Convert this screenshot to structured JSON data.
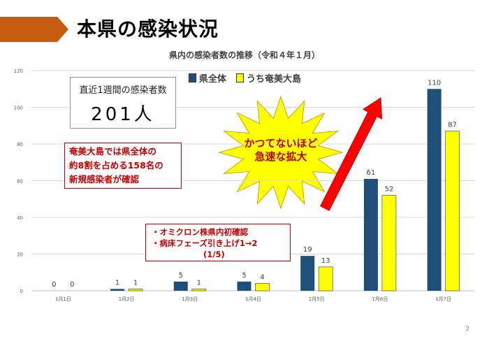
{
  "page": {
    "title": "本県の感染状況",
    "page_number": "2"
  },
  "colors": {
    "header_arrow": "#c55a11",
    "series_prefecture": "#1f4e79",
    "series_amami": "#ffff00",
    "annotation_red": "#c00000",
    "burst_fill": "#ffff00",
    "arrow_red": "#ff0000"
  },
  "weekly_box": {
    "label": "直近1週間の感染者数",
    "value": "201人"
  },
  "notes": {
    "amami_line1": "奄美大島では県全体の",
    "amami_line2": "約8割を占める158名の",
    "amami_line3": "新規感染者が確認",
    "event_line1": "・オミクロン株県内初確認",
    "event_line2": "・病床フェーズ引き上げ1→2",
    "event_line3": "(1/5)",
    "burst_line1": "かつてないほど",
    "burst_line2": "急速な拡大"
  },
  "chart_data": {
    "type": "bar",
    "title": "県内の感染者数の推移（令和４年１月）",
    "categories": [
      "1月1日",
      "1月2日",
      "1月3日",
      "1月4日",
      "1月5日",
      "1月6日",
      "1月7日"
    ],
    "series": [
      {
        "name": "県全体",
        "values": [
          0,
          1,
          5,
          5,
          19,
          61,
          110
        ]
      },
      {
        "name": "うち奄美大島",
        "values": [
          0,
          1,
          1,
          4,
          13,
          52,
          87
        ]
      }
    ],
    "ylim": [
      0,
      120
    ],
    "yticks": [
      0,
      20,
      40,
      60,
      80,
      100,
      120
    ],
    "grid": true,
    "legend_position": "top"
  }
}
